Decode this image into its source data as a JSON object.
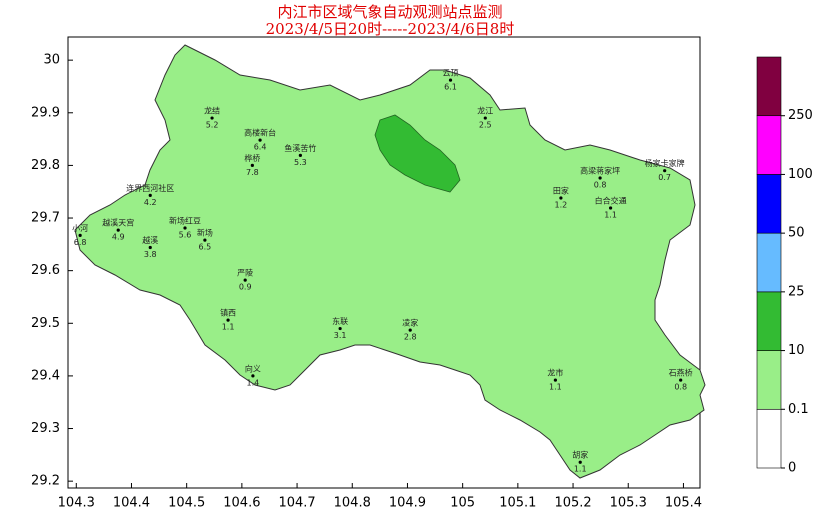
{
  "chart_data": {
    "type": "map",
    "title": "内江市区域气象自动观测站点监测",
    "subtitle": "2023/4/5日20时-----2023/4/6日8时",
    "xlim": [
      104.285,
      105.43
    ],
    "ylim": [
      29.187,
      30.044
    ],
    "xticks": [
      104.3,
      104.4,
      104.5,
      104.6,
      104.7,
      104.8,
      104.9,
      105,
      105.1,
      105.2,
      105.3,
      105.4
    ],
    "yticks": [
      29.2,
      29.3,
      29.4,
      29.5,
      29.6,
      29.7,
      29.8,
      29.9,
      30
    ],
    "colorbar": {
      "levels": [
        0,
        0.1,
        10,
        25,
        50,
        100,
        250
      ],
      "colors": [
        "#ffffff",
        "#99ee88",
        "#33bb33",
        "#66bbff",
        "#0000ff",
        "#ff00ff",
        "#800040"
      ]
    },
    "stations": [
      {
        "name": "龙结",
        "lon": 104.546,
        "lat": 29.89,
        "value": 5.2
      },
      {
        "name": "高楼新台",
        "lon": 104.633,
        "lat": 29.848,
        "value": 6.4
      },
      {
        "name": "桦桥",
        "lon": 104.619,
        "lat": 29.8,
        "value": 7.8
      },
      {
        "name": "鱼溪苦竹",
        "lon": 104.706,
        "lat": 29.819,
        "value": 5.3
      },
      {
        "name": "云顶",
        "lon": 104.978,
        "lat": 29.962,
        "value": 6.1
      },
      {
        "name": "龙江",
        "lon": 105.041,
        "lat": 29.89,
        "value": 2.5
      },
      {
        "name": "高梁蒋家坪",
        "lon": 105.249,
        "lat": 29.776,
        "value": 0.8
      },
      {
        "name": "杨家卡家牌",
        "lon": 105.366,
        "lat": 29.79,
        "value": 0.7
      },
      {
        "name": "连界西河社区",
        "lon": 104.434,
        "lat": 29.743,
        "value": 4.2
      },
      {
        "name": "越溪天宫",
        "lon": 104.376,
        "lat": 29.677,
        "value": 4.9
      },
      {
        "name": "小河",
        "lon": 104.307,
        "lat": 29.667,
        "value": 6.8
      },
      {
        "name": "越溪",
        "lon": 104.434,
        "lat": 29.644,
        "value": 3.8
      },
      {
        "name": "新场红豆",
        "lon": 104.497,
        "lat": 29.681,
        "value": 5.6
      },
      {
        "name": "新场",
        "lon": 104.533,
        "lat": 29.658,
        "value": 6.5
      },
      {
        "name": "镇西",
        "lon": 104.575,
        "lat": 29.506,
        "value": 1.1
      },
      {
        "name": "严陵",
        "lon": 104.606,
        "lat": 29.582,
        "value": 0.9
      },
      {
        "name": "东联",
        "lon": 104.778,
        "lat": 29.49,
        "value": 3.1
      },
      {
        "name": "凌家",
        "lon": 104.905,
        "lat": 29.487,
        "value": 2.8
      },
      {
        "name": "龙市",
        "lon": 105.168,
        "lat": 29.392,
        "value": 1.1
      },
      {
        "name": "石燕桥",
        "lon": 105.395,
        "lat": 29.392,
        "value": 0.8
      },
      {
        "name": "胡家",
        "lon": 105.213,
        "lat": 29.236,
        "value": 1.1
      },
      {
        "name": "白合交通",
        "lon": 105.268,
        "lat": 29.719,
        "value": 1.1
      },
      {
        "name": "田家",
        "lon": 105.178,
        "lat": 29.738,
        "value": 1.2
      },
      {
        "name": "向义",
        "lon": 104.62,
        "lat": 29.4,
        "value": 1.4
      }
    ]
  }
}
